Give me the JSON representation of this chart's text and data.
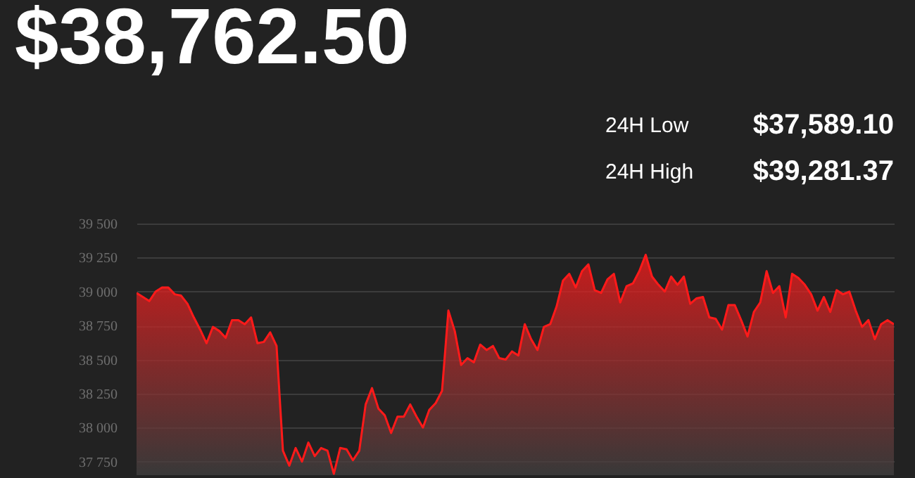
{
  "chart_data": {
    "type": "area",
    "title": "$38,762.50",
    "annotations": [
      "24H Low",
      "$37,589.10",
      "24H High",
      "$39,281.37"
    ],
    "categories": [
      null,
      null,
      null,
      null,
      null,
      null,
      null,
      null,
      null,
      null,
      null,
      null,
      null,
      null,
      null,
      null,
      null,
      null,
      null,
      null,
      null,
      null,
      null,
      null,
      null,
      null,
      null,
      null,
      null,
      null,
      null,
      null,
      null,
      null,
      null,
      null,
      null,
      null,
      null,
      null,
      null,
      null,
      null,
      null,
      null,
      null,
      null,
      null,
      null,
      null,
      null,
      null,
      null,
      null,
      null,
      null,
      null,
      null,
      null,
      null,
      null,
      null,
      null,
      null,
      null,
      null,
      null,
      null,
      null,
      null,
      null,
      null,
      null,
      null,
      null,
      null,
      null,
      null,
      null,
      null,
      null,
      null,
      null,
      null,
      null,
      null,
      null,
      null,
      null,
      null,
      null,
      null,
      null,
      null,
      null,
      null,
      null,
      null,
      null,
      null,
      null,
      null,
      null,
      null,
      null,
      null,
      null,
      null,
      null,
      null,
      null,
      null,
      null,
      null,
      null,
      null,
      null,
      null,
      null,
      null
    ],
    "series": [
      {
        "color": "#ff1a1a",
        "values": [
          38990,
          38960,
          38930,
          39000,
          39030,
          39030,
          38980,
          38970,
          38910,
          38810,
          38720,
          38620,
          38740,
          38710,
          38660,
          38790,
          38790,
          38760,
          38810,
          38620,
          38630,
          38700,
          38600,
          37830,
          37720,
          37850,
          37750,
          37890,
          37790,
          37850,
          37830,
          37660,
          37850,
          37840,
          37760,
          37830,
          38170,
          38290,
          38140,
          38090,
          37960,
          38080,
          38080,
          38170,
          38080,
          38000,
          38130,
          38180,
          38270,
          38860,
          38710,
          38460,
          38510,
          38480,
          38610,
          38570,
          38600,
          38510,
          38500,
          38560,
          38530,
          38760,
          38650,
          38570,
          38740,
          38760,
          38890,
          39080,
          39130,
          39030,
          39150,
          39200,
          39010,
          38990,
          39090,
          39130,
          38920,
          39040,
          39060,
          39150,
          39270,
          39110,
          39050,
          39000,
          39110,
          39050,
          39110,
          38910,
          38950,
          38960,
          38810,
          38800,
          38720,
          38900,
          38900,
          38790,
          38670,
          38850,
          38920,
          39150,
          38990,
          39040,
          38810,
          39130,
          39100,
          39050,
          38980,
          38860,
          38960,
          38850,
          39010,
          38980,
          39000,
          38860,
          38740,
          38790,
          38650,
          38760,
          38790,
          38760
        ]
      }
    ],
    "ylim": [
      37650,
      39500
    ],
    "yticks": [
      {
        "value": 37750,
        "label": "37 750"
      },
      {
        "value": 38000,
        "label": "38 000"
      },
      {
        "value": 38250,
        "label": "38 250"
      },
      {
        "value": 38500,
        "label": "38 500"
      },
      {
        "value": 38750,
        "label": "38 750"
      },
      {
        "value": 39000,
        "label": "39 000"
      },
      {
        "value": 39250,
        "label": "39 250"
      },
      {
        "value": 39500,
        "label": "39 500"
      }
    ],
    "grid": "y",
    "tick_labels": "y"
  }
}
